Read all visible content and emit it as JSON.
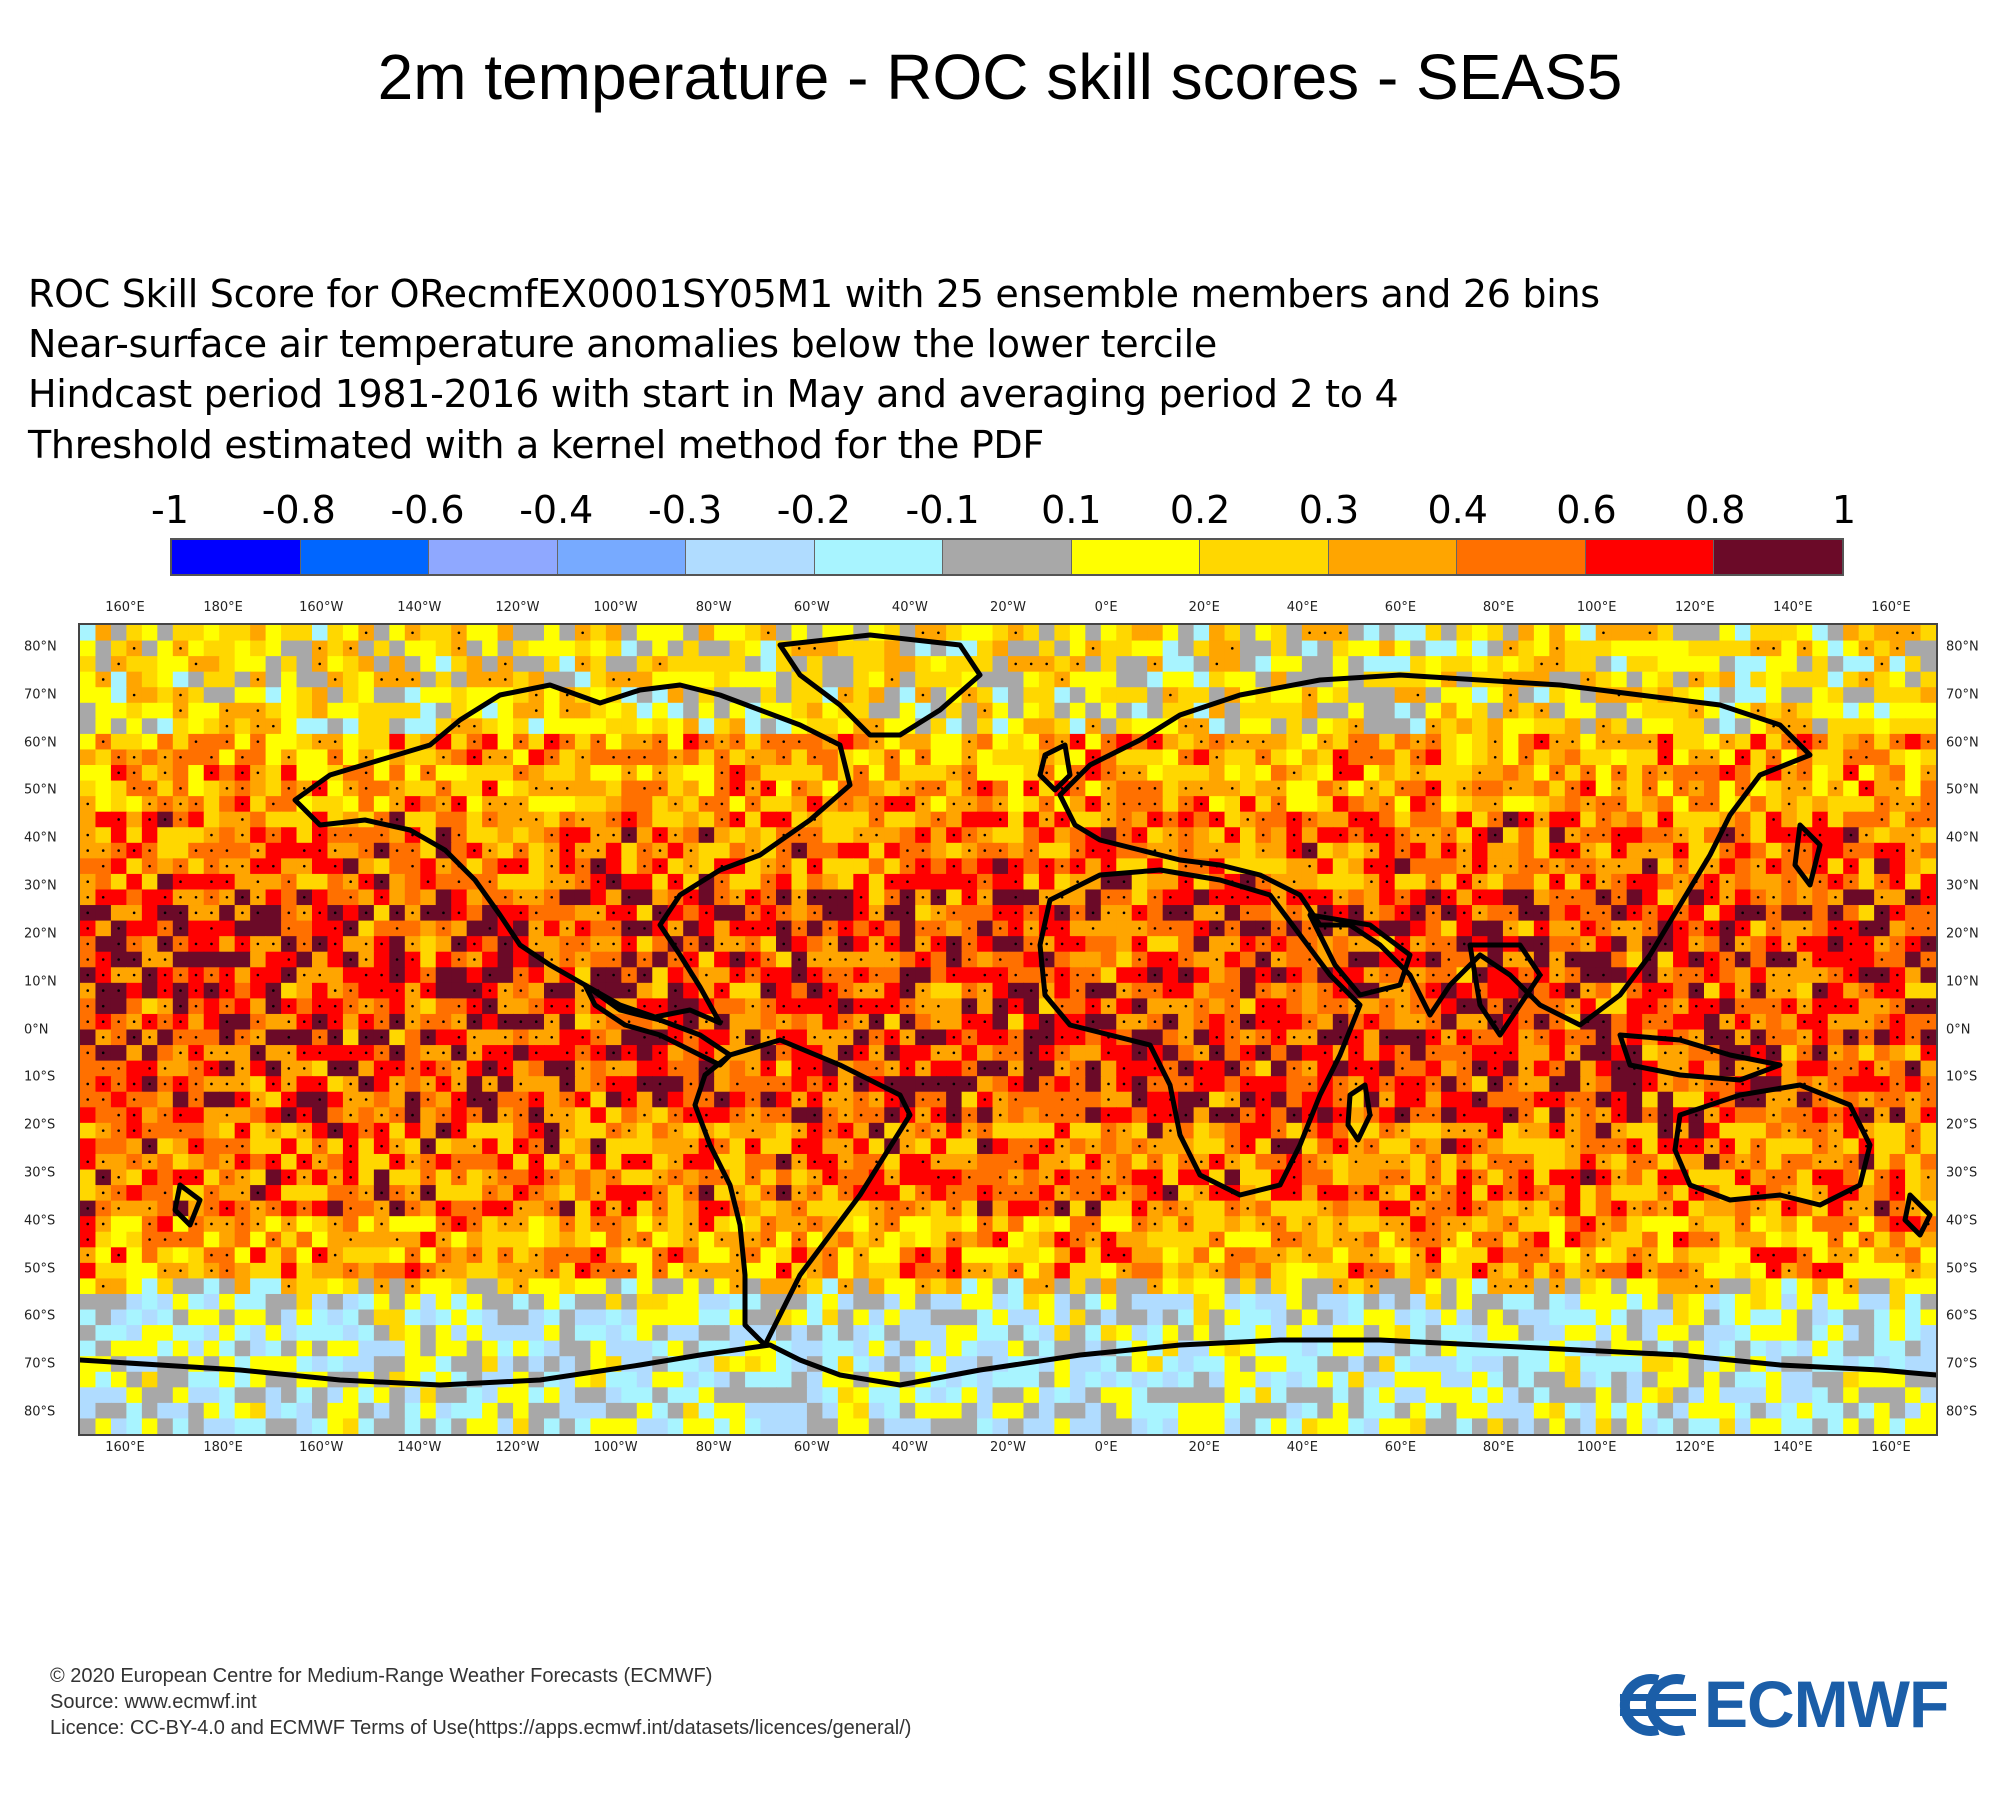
{
  "title": "2m temperature - ROC skill scores - SEAS5",
  "subtitle_lines": [
    "ROC Skill Score for ORecmfEX0001SY05M1 with 25 ensemble members and 26 bins",
    "Near-surface air temperature anomalies below the lower tercile",
    "Hindcast period 1981-2016 with start in May and averaging period  2 to  4",
    "Threshold estimated with a kernel method for the PDF"
  ],
  "legend": {
    "labels": [
      "-1",
      "-0.8",
      "-0.6",
      "-0.4",
      "-0.3",
      "-0.2",
      "-0.1",
      "0.1",
      "0.2",
      "0.3",
      "0.4",
      "0.6",
      "0.8",
      "1"
    ],
    "colors": [
      "#0000ff",
      "#0066ff",
      "#8fa8ff",
      "#77aaff",
      "#b0dcff",
      "#a8f4ff",
      "#a8a8a8",
      "#ffff00",
      "#ffd700",
      "#ffa500",
      "#ff7000",
      "#ff0000",
      "#6b0a28"
    ]
  },
  "map": {
    "lon_labels": [
      "160°E",
      "180°E",
      "160°W",
      "140°W",
      "120°W",
      "100°W",
      "80°W",
      "60°W",
      "40°W",
      "20°W",
      "0°E",
      "20°E",
      "40°E",
      "60°E",
      "80°E",
      "100°E",
      "120°E",
      "140°E",
      "160°E"
    ],
    "lat_labels": [
      "80°N",
      "70°N",
      "60°N",
      "50°N",
      "40°N",
      "30°N",
      "20°N",
      "10°N",
      "0°N",
      "10°S",
      "20°S",
      "30°S",
      "40°S",
      "50°S",
      "60°S",
      "70°S",
      "80°S"
    ],
    "coastline_color": "#000000"
  },
  "footer": {
    "line1": "© 2020 European Centre for Medium-Range Weather Forecasts (ECMWF)",
    "line2": "Source: www.ecmwf.int",
    "line3": "Licence: CC-BY-4.0 and ECMWF Terms of Use(https://apps.ecmwf.int/datasets/licences/general/)"
  },
  "logo": {
    "text": "ECMWF",
    "color": "#1b5ea8"
  }
}
